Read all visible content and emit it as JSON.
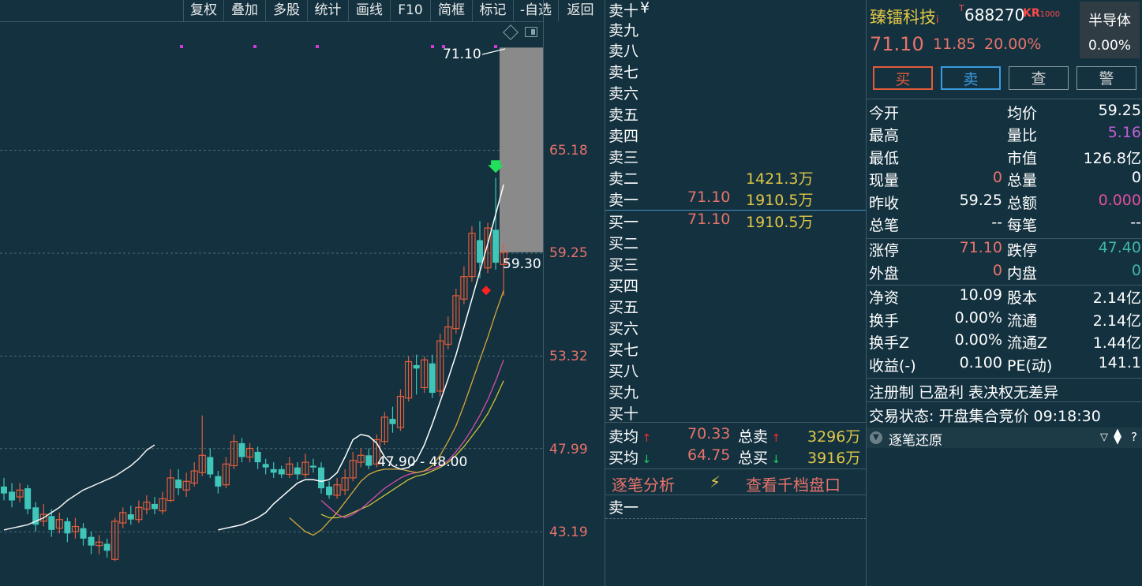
{
  "toolbar": {
    "items": [
      "复权",
      "叠加",
      "多股",
      "统计",
      "画线",
      "F10",
      "简框",
      "标记",
      "-自选",
      "返回"
    ]
  },
  "chart": {
    "y_labels": [
      "65.18",
      "59.25",
      "53.32",
      "47.99",
      "43.19"
    ],
    "high_annotation": "71.10",
    "right_annotation": "59.30",
    "range_annotation": "47.90 - 48.00"
  },
  "chart_data": {
    "type": "candlestick",
    "ylim": [
      41.5,
      72
    ],
    "y_ticks": [
      65.18,
      59.25,
      53.32,
      47.99,
      43.19
    ],
    "candles": [
      {
        "o": 45.8,
        "c": 45.4,
        "h": 46.3,
        "l": 45.0
      },
      {
        "o": 45.5,
        "c": 45.0,
        "h": 46.0,
        "l": 44.6
      },
      {
        "o": 45.2,
        "c": 45.6,
        "h": 46.0,
        "l": 44.9
      },
      {
        "o": 45.7,
        "c": 44.5,
        "h": 45.9,
        "l": 44.2
      },
      {
        "o": 44.6,
        "c": 43.6,
        "h": 44.9,
        "l": 43.2
      },
      {
        "o": 43.8,
        "c": 44.2,
        "h": 44.8,
        "l": 43.5
      },
      {
        "o": 44.1,
        "c": 43.3,
        "h": 44.5,
        "l": 42.9
      },
      {
        "o": 43.4,
        "c": 43.9,
        "h": 44.3,
        "l": 43.1
      },
      {
        "o": 43.8,
        "c": 43.1,
        "h": 44.0,
        "l": 42.6
      },
      {
        "o": 43.2,
        "c": 43.5,
        "h": 44.0,
        "l": 42.8
      },
      {
        "o": 43.4,
        "c": 42.8,
        "h": 43.7,
        "l": 42.4
      },
      {
        "o": 42.9,
        "c": 42.4,
        "h": 43.2,
        "l": 41.9
      },
      {
        "o": 42.4,
        "c": 42.6,
        "h": 43.0,
        "l": 41.9
      },
      {
        "o": 42.5,
        "c": 42.1,
        "h": 42.8,
        "l": 41.7
      },
      {
        "o": 41.6,
        "c": 43.8,
        "h": 44.0,
        "l": 41.5
      },
      {
        "o": 43.7,
        "c": 44.3,
        "h": 44.6,
        "l": 43.4
      },
      {
        "o": 44.2,
        "c": 43.9,
        "h": 44.7,
        "l": 43.6
      },
      {
        "o": 43.9,
        "c": 44.6,
        "h": 45.0,
        "l": 43.7
      },
      {
        "o": 44.5,
        "c": 44.9,
        "h": 45.3,
        "l": 44.2
      },
      {
        "o": 44.8,
        "c": 44.5,
        "h": 45.2,
        "l": 44.2
      },
      {
        "o": 44.4,
        "c": 45.1,
        "h": 45.5,
        "l": 44.2
      },
      {
        "o": 45.0,
        "c": 46.3,
        "h": 46.8,
        "l": 44.9
      },
      {
        "o": 46.2,
        "c": 45.7,
        "h": 46.8,
        "l": 45.3
      },
      {
        "o": 45.6,
        "c": 46.1,
        "h": 46.6,
        "l": 45.2
      },
      {
        "o": 46.0,
        "c": 46.7,
        "h": 47.2,
        "l": 45.8
      },
      {
        "o": 46.6,
        "c": 47.6,
        "h": 49.9,
        "l": 46.4
      },
      {
        "o": 47.5,
        "c": 46.5,
        "h": 48.0,
        "l": 46.3
      },
      {
        "o": 46.4,
        "c": 45.8,
        "h": 46.7,
        "l": 45.4
      },
      {
        "o": 45.9,
        "c": 47.1,
        "h": 47.5,
        "l": 45.7
      },
      {
        "o": 47.0,
        "c": 48.4,
        "h": 48.8,
        "l": 46.8
      },
      {
        "o": 48.3,
        "c": 47.5,
        "h": 48.6,
        "l": 47.2
      },
      {
        "o": 47.5,
        "c": 48.0,
        "h": 48.3,
        "l": 47.2
      },
      {
        "o": 47.8,
        "c": 47.2,
        "h": 48.1,
        "l": 46.8
      },
      {
        "o": 47.1,
        "c": 46.9,
        "h": 47.4,
        "l": 46.5
      },
      {
        "o": 46.8,
        "c": 46.6,
        "h": 47.2,
        "l": 46.3
      },
      {
        "o": 46.8,
        "c": 46.5,
        "h": 47.0,
        "l": 46.3
      },
      {
        "o": 46.5,
        "c": 47.1,
        "h": 47.5,
        "l": 46.3
      },
      {
        "o": 46.9,
        "c": 46.5,
        "h": 47.2,
        "l": 46.2
      },
      {
        "o": 46.5,
        "c": 47.2,
        "h": 47.7,
        "l": 46.3
      },
      {
        "o": 47.0,
        "c": 46.9,
        "h": 47.4,
        "l": 46.6
      },
      {
        "o": 46.9,
        "c": 45.7,
        "h": 47.2,
        "l": 45.4
      },
      {
        "o": 45.8,
        "c": 45.3,
        "h": 46.1,
        "l": 45.1
      },
      {
        "o": 45.3,
        "c": 45.9,
        "h": 46.3,
        "l": 45.1
      },
      {
        "o": 45.6,
        "c": 46.3,
        "h": 46.8,
        "l": 45.3
      },
      {
        "o": 46.3,
        "c": 47.3,
        "h": 47.8,
        "l": 46.1
      },
      {
        "o": 47.2,
        "c": 47.6,
        "h": 48.0,
        "l": 46.9
      },
      {
        "o": 47.6,
        "c": 47.0,
        "h": 48.0,
        "l": 46.8
      },
      {
        "o": 47.1,
        "c": 48.5,
        "h": 48.8,
        "l": 46.9
      },
      {
        "o": 48.4,
        "c": 49.8,
        "h": 50.1,
        "l": 48.2
      },
      {
        "o": 49.7,
        "c": 49.4,
        "h": 50.4,
        "l": 48.9
      },
      {
        "o": 49.2,
        "c": 51.0,
        "h": 51.4,
        "l": 49.0
      },
      {
        "o": 50.9,
        "c": 53.0,
        "h": 53.3,
        "l": 50.7
      },
      {
        "o": 52.8,
        "c": 52.6,
        "h": 53.4,
        "l": 51.1
      },
      {
        "o": 51.5,
        "c": 53.1,
        "h": 53.3,
        "l": 51.2
      },
      {
        "o": 52.9,
        "c": 51.2,
        "h": 53.4,
        "l": 50.9
      },
      {
        "o": 51.3,
        "c": 54.2,
        "h": 54.6,
        "l": 51.0
      },
      {
        "o": 54.0,
        "c": 55.0,
        "h": 55.6,
        "l": 53.7
      },
      {
        "o": 54.9,
        "c": 56.8,
        "h": 57.2,
        "l": 54.6
      },
      {
        "o": 56.6,
        "c": 57.9,
        "h": 58.5,
        "l": 56.3
      },
      {
        "o": 57.9,
        "c": 60.4,
        "h": 60.8,
        "l": 57.6
      },
      {
        "o": 60.0,
        "c": 58.7,
        "h": 61.1,
        "l": 57.8
      },
      {
        "o": 58.4,
        "c": 60.7,
        "h": 61.0,
        "l": 58.1
      },
      {
        "o": 60.6,
        "c": 58.7,
        "h": 63.6,
        "l": 58.3
      },
      {
        "o": 58.6,
        "c": 59.3,
        "h": 59.8,
        "l": 56.8
      }
    ],
    "ma_white": [
      43.3,
      43.4,
      43.5,
      43.6,
      43.8,
      44.0,
      44.3,
      44.8,
      45.2,
      45.6,
      46.0,
      46.2,
      46.2,
      46.1,
      46.2,
      46.6,
      47.5,
      48.5,
      48.8,
      48.7,
      48.3,
      47.5,
      47.0,
      46.8,
      46.9,
      47.3,
      48.2,
      49.4,
      50.7,
      52.0,
      53.4,
      55.0,
      56.6,
      58.2,
      59.8,
      61.5,
      63.2
    ],
    "ma_yellow": [
      44.0,
      43.6,
      43.2,
      43.0,
      43.3,
      43.8,
      44.3,
      44.9,
      45.5,
      46.1,
      46.5,
      46.7,
      46.8,
      46.8,
      46.8,
      46.7,
      46.6,
      46.7,
      47.0,
      47.6,
      48.4,
      49.3,
      50.5,
      51.8,
      53.1,
      54.4,
      55.8,
      57.1
    ],
    "ma_pink": [
      45.0,
      44.6,
      44.2,
      44.0,
      44.2,
      44.5,
      44.9,
      45.3,
      45.7,
      46.0,
      46.3,
      46.5,
      46.6,
      46.7,
      46.8,
      47.0,
      47.3,
      47.8,
      48.4,
      49.1,
      49.9,
      50.8,
      51.9,
      53.1
    ],
    "ma_olive": [
      44.2,
      44.0,
      44.0,
      44.1,
      44.3,
      44.5,
      44.7,
      45.0,
      45.3,
      45.6,
      45.9,
      46.2,
      46.4,
      46.5,
      46.7,
      46.9,
      47.2,
      47.6,
      48.1,
      48.7,
      49.3,
      50.0,
      50.9,
      51.9
    ],
    "ma_longwhite": [
      43.3,
      43.4,
      43.5,
      43.6,
      43.8,
      44.0,
      44.3,
      44.6,
      45.0,
      45.3,
      45.6,
      45.8,
      46.0,
      46.2,
      46.4,
      46.7,
      47.0,
      47.4,
      47.9,
      48.2
    ]
  },
  "orderbook": {
    "asks": [
      {
        "label": "卖十",
        "price": "",
        "vol": "",
        "extra": "¥"
      },
      {
        "label": "卖九",
        "price": "",
        "vol": ""
      },
      {
        "label": "卖八",
        "price": "",
        "vol": ""
      },
      {
        "label": "卖七",
        "price": "",
        "vol": ""
      },
      {
        "label": "卖六",
        "price": "",
        "vol": ""
      },
      {
        "label": "卖五",
        "price": "",
        "vol": ""
      },
      {
        "label": "卖四",
        "price": "",
        "vol": ""
      },
      {
        "label": "卖三",
        "price": "",
        "vol": ""
      },
      {
        "label": "卖二",
        "price": "",
        "vol": "1421.3万"
      },
      {
        "label": "卖一",
        "price": "71.10",
        "vol": "1910.5万"
      }
    ],
    "bids": [
      {
        "label": "买一",
        "price": "71.10",
        "vol": "1910.5万"
      },
      {
        "label": "买二",
        "price": "",
        "vol": ""
      },
      {
        "label": "买三",
        "price": "",
        "vol": ""
      },
      {
        "label": "买四",
        "price": "",
        "vol": ""
      },
      {
        "label": "买五",
        "price": "",
        "vol": ""
      },
      {
        "label": "买六",
        "price": "",
        "vol": ""
      },
      {
        "label": "买七",
        "price": "",
        "vol": ""
      },
      {
        "label": "买八",
        "price": "",
        "vol": ""
      },
      {
        "label": "买九",
        "price": "",
        "vol": ""
      },
      {
        "label": "买十",
        "price": "",
        "vol": ""
      }
    ],
    "sell_avg_label": "卖均",
    "sell_avg": "70.33",
    "total_sell_label": "总卖",
    "total_sell": "3296万",
    "buy_avg_label": "买均",
    "buy_avg": "64.75",
    "total_buy_label": "总买",
    "total_buy": "3916万",
    "tick_analysis": "逐笔分析",
    "thousand_levels": "查看千档盘口",
    "tick_first": "卖一"
  },
  "quote": {
    "name": "臻镭科技",
    "name_suffix": "i",
    "t_mark": "T",
    "code": "688270",
    "kr_mark": "KR",
    "kr_sub": "1000",
    "sector": "半导体",
    "sector_pct": "0.00%",
    "price": "71.10",
    "change": "11.85",
    "change_pct": "20.00%",
    "btn_buy": "买",
    "btn_sell": "卖",
    "btn_query": "查",
    "btn_alert": "警",
    "rows": [
      {
        "l1": "今开",
        "v1": "",
        "l2": "均价",
        "v2": "59.25",
        "c1": "white",
        "c2": "white"
      },
      {
        "l1": "最高",
        "v1": "",
        "l2": "量比",
        "v2": "5.16",
        "c1": "white",
        "c2": "purple"
      },
      {
        "l1": "最低",
        "v1": "",
        "l2": "市值",
        "v2": "126.8亿",
        "c1": "white",
        "c2": "white"
      },
      {
        "l1": "现量",
        "v1": "0",
        "l2": "总量",
        "v2": "0",
        "c1": "red",
        "c2": "white"
      },
      {
        "l1": "昨收",
        "v1": "59.25",
        "l2": "总额",
        "v2": "0.000",
        "c1": "white",
        "c2": "pink"
      },
      {
        "l1": "总笔",
        "v1": "--",
        "l2": "每笔",
        "v2": "--",
        "c1": "white",
        "c2": "white"
      },
      {
        "l1": "涨停",
        "v1": "71.10",
        "l2": "跌停",
        "v2": "47.40",
        "c1": "red",
        "c2": "teal"
      },
      {
        "l1": "外盘",
        "v1": "0",
        "l2": "内盘",
        "v2": "0",
        "c1": "red",
        "c2": "teal"
      },
      {
        "l1": "净资",
        "v1": "10.09",
        "l2": "股本",
        "v2": "2.14亿",
        "c1": "white",
        "c2": "white"
      },
      {
        "l1": "换手",
        "v1": "0.00%",
        "l2": "流通",
        "v2": "2.14亿",
        "c1": "white",
        "c2": "white"
      },
      {
        "l1": "换手Z",
        "v1": "0.00%",
        "l2": "流通Z",
        "v2": "1.44亿",
        "c1": "white",
        "c2": "white"
      },
      {
        "l1": "收益(-)",
        "v1": "0.100",
        "l2": "PE(动)",
        "v2": "141.1",
        "c1": "white",
        "c2": "white"
      }
    ],
    "tags": "注册制 已盈利 表决权无差异",
    "trade_status": "交易状态: 开盘集合竞价 09:18:30",
    "tick_restore": "逐笔还原"
  },
  "colors": {
    "bg": "#13313f",
    "up": "#e35d3b",
    "down": "#3fc6b8",
    "accent_red": "#e8736a",
    "accent_yellow": "#e2c646"
  }
}
